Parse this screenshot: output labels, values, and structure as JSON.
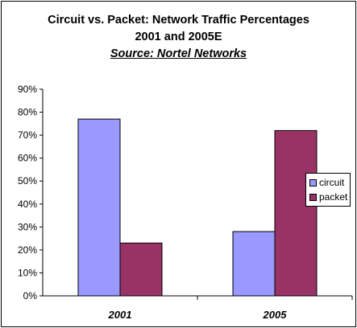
{
  "chart_data": {
    "type": "bar",
    "title": "Circuit vs. Packet: Network Traffic Percentages",
    "subtitle": "2001 and 2005E",
    "source": "Source: Nortel Networks",
    "categories": [
      "2001",
      "2005"
    ],
    "series": [
      {
        "name": "circuit",
        "values": [
          77,
          28
        ],
        "color": "#9999ff"
      },
      {
        "name": "packet",
        "values": [
          23,
          72
        ],
        "color": "#993366"
      }
    ],
    "ylim": [
      0,
      90
    ],
    "yticks": [
      "0%",
      "10%",
      "20%",
      "30%",
      "40%",
      "50%",
      "60%",
      "70%",
      "80%",
      "90%"
    ],
    "ytick_values": [
      0,
      10,
      20,
      30,
      40,
      50,
      60,
      70,
      80,
      90
    ],
    "grid": false,
    "legend_position": "right"
  }
}
